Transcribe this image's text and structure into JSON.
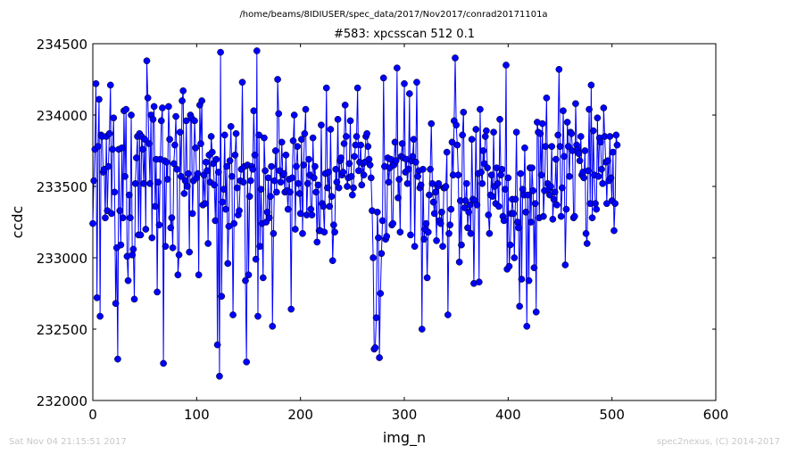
{
  "chart_data": {
    "type": "line",
    "suptitle": "/home/beams/8IDIUSER/spec_data/2017/Nov2017/conrad20171101a",
    "title": "#583: xpcsscan 512 0.1",
    "xlabel": "img_n",
    "ylabel": "ccdc",
    "xlim": [
      0,
      600
    ],
    "ylim": [
      232000,
      234500
    ],
    "xticks": [
      "0",
      "100",
      "200",
      "300",
      "400",
      "500",
      "600"
    ],
    "yticks": [
      "232000",
      "232500",
      "233000",
      "233500",
      "234000",
      "234500"
    ],
    "grid": false,
    "legend": "none",
    "series_color": "#0000ff",
    "series": [
      {
        "x_start": 0,
        "x_step": 1,
        "values": [
          233240,
          233540,
          233760,
          234220,
          232720,
          233780,
          234110,
          232590,
          233860,
          233850,
          233600,
          233620,
          233280,
          233850,
          233330,
          233640,
          233870,
          234210,
          233310,
          233760,
          233980,
          233460,
          232680,
          233070,
          232290,
          233760,
          233330,
          233090,
          233770,
          233280,
          234030,
          233570,
          234040,
          233010,
          232840,
          233440,
          233280,
          234000,
          233020,
          233060,
          232710,
          233520,
          233700,
          233850,
          233160,
          233870,
          233160,
          233850,
          233760,
          233520,
          233830,
          233200,
          234380,
          234120,
          233800,
          233520,
          234000,
          233140,
          233970,
          234060,
          233360,
          233690,
          232760,
          233530,
          233230,
          233690,
          233960,
          234050,
          232260,
          233680,
          233080,
          233670,
          233550,
          234060,
          233830,
          233210,
          233280,
          233070,
          233660,
          233790,
          233990,
          233620,
          232880,
          233020,
          233880,
          233570,
          234100,
          234170,
          233450,
          233540,
          233960,
          233500,
          233590,
          233040,
          234000,
          233980,
          233310,
          233540,
          233960,
          233770,
          233560,
          233590,
          232880,
          234070,
          233800,
          234100,
          233370,
          233580,
          233380,
          233670,
          233610,
          233100,
          233720,
          233530,
          233850,
          233740,
          233660,
          233510,
          233260,
          233690,
          232390,
          233600,
          232170,
          234440,
          232730,
          233390,
          233480,
          233860,
          233340,
          233640,
          232960,
          233220,
          233680,
          233920,
          233570,
          232600,
          233240,
          233720,
          233870,
          233490,
          233300,
          233330,
          233540,
          233620,
          234230,
          233530,
          233640,
          232840,
          232270,
          233650,
          232880,
          233430,
          233540,
          233640,
          233620,
          234030,
          233720,
          232990,
          234450,
          232590,
          233860,
          233080,
          233480,
          233240,
          232860,
          233840,
          233610,
          233250,
          233320,
          233560,
          233280,
          233430,
          233640,
          232520,
          233170,
          233540,
          233750,
          233460,
          234250,
          234010,
          233610,
          233530,
          233810,
          233580,
          233590,
          233460,
          233720,
          233470,
          233340,
          233550,
          233460,
          232640,
          233560,
          233820,
          234000,
          233200,
          233640,
          233780,
          233520,
          233450,
          233310,
          233830,
          233170,
          233650,
          233870,
          234040,
          233300,
          233520,
          233690,
          233580,
          233340,
          233300,
          233840,
          233560,
          233640,
          233460,
          233110,
          233510,
          233190,
          233190,
          233930,
          233380,
          233360,
          233180,
          233590,
          234190,
          233490,
          233600,
          233360,
          233900,
          233430,
          232980,
          233230,
          233180,
          233620,
          233530,
          233970,
          233490,
          233680,
          233700,
          233580,
          233600,
          233800,
          234070,
          233850,
          233500,
          233560,
          233660,
          233960,
          233570,
          233440,
          233490,
          233710,
          233790,
          233850,
          234190,
          233610,
          233670,
          233790,
          233510,
          233660,
          233580,
          233670,
          233850,
          233870,
          233780,
          233690,
          233650,
          233560,
          233330,
          233000,
          232360,
          232370,
          232580,
          233320,
          233140,
          232300,
          232750,
          233030,
          233260,
          234260,
          233640,
          233130,
          233150,
          233700,
          233530,
          233630,
          233690,
          233230,
          233240,
          233650,
          233810,
          233680,
          234330,
          233420,
          233550,
          233180,
          233710,
          233800,
          233700,
          234220,
          233600,
          233690,
          233520,
          233620,
          234150,
          233160,
          233680,
          233710,
          233830,
          233080,
          233670,
          234230,
          233570,
          233610,
          233490,
          233510,
          232500,
          233620,
          233130,
          233200,
          233240,
          232860,
          233180,
          233440,
          233620,
          233940,
          233520,
          233390,
          233310,
          233460,
          233120,
          233500,
          233520,
          233260,
          233240,
          233320,
          233080,
          233490,
          233490,
          233500,
          233740,
          232600,
          233170,
          233230,
          233340,
          233810,
          233580,
          233960,
          234400,
          233930,
          233790,
          233580,
          232970,
          233400,
          233090,
          233860,
          234020,
          233350,
          233400,
          233520,
          233210,
          233320,
          233370,
          233170,
          233830,
          233410,
          232820,
          233400,
          233900,
          233370,
          233590,
          232830,
          234040,
          233600,
          233520,
          233750,
          233660,
          233850,
          233890,
          233630,
          233300,
          233170,
          233440,
          233580,
          233430,
          233880,
          233500,
          233380,
          233630,
          233520,
          233360,
          233970,
          233580,
          233620,
          233290,
          233260,
          233480,
          234350,
          232920,
          233560,
          232940,
          233090,
          233310,
          233410,
          233310,
          233000,
          233410,
          233880,
          233250,
          233210,
          232660,
          233590,
          232850,
          233480,
          233440,
          233770,
          233320,
          232520,
          233440,
          232840,
          233630,
          233250,
          233630,
          233470,
          232930,
          233380,
          232620,
          233950,
          233880,
          233280,
          233870,
          233580,
          233940,
          233290,
          233470,
          233780,
          234120,
          233520,
          233480,
          233440,
          233500,
          233780,
          233270,
          233410,
          233460,
          233690,
          233370,
          233860,
          234320,
          233780,
          233290,
          233490,
          234030,
          233710,
          232950,
          233340,
          233950,
          233780,
          233570,
          233880,
          233870,
          233750,
          233280,
          233290,
          234080,
          233790,
          233760,
          233730,
          233680,
          233850,
          233580,
          233600,
          233560,
          233750,
          233170,
          233100,
          233610,
          234040,
          233380,
          234210,
          233280,
          233890,
          233580,
          233380,
          233340,
          233980,
          233570,
          233840,
          233810,
          233620,
          233520,
          234050,
          233850,
          233670,
          233380,
          233680,
          233540,
          233850,
          233560,
          233400,
          233740,
          233190,
          233380,
          233860,
          233790
        ]
      }
    ]
  },
  "footer": {
    "timestamp": "Sat Nov 04 21:15:51 2017",
    "credit": "spec2nexus, (C) 2014-2017"
  }
}
